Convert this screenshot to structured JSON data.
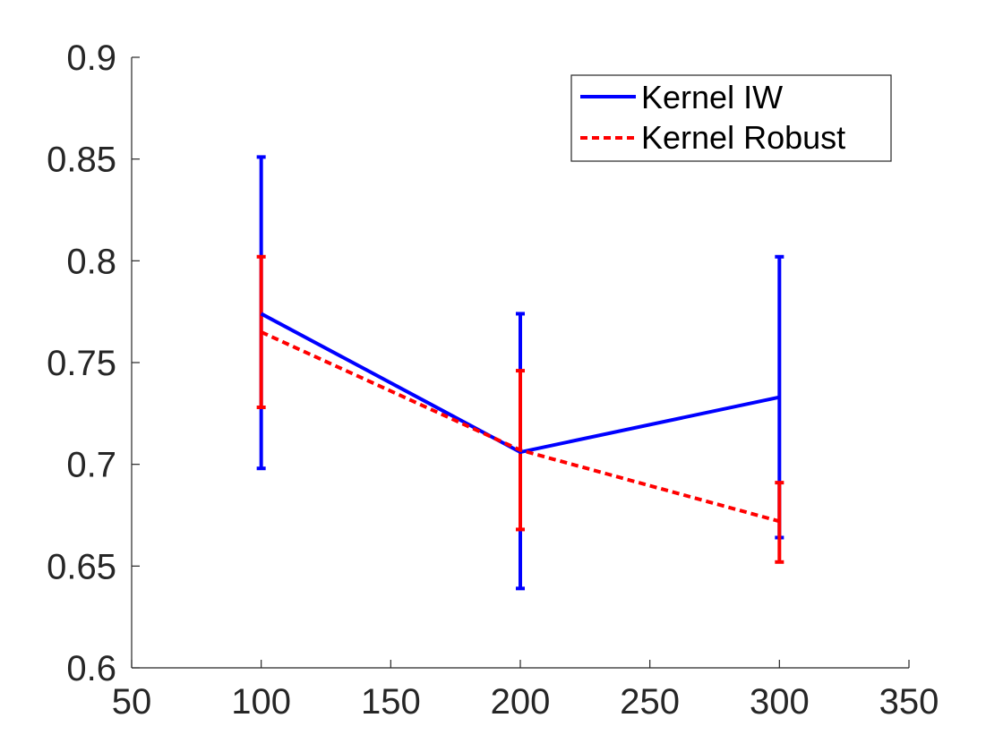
{
  "chart_data": {
    "type": "line",
    "title": "",
    "xlabel": "",
    "ylabel": "",
    "xlim": [
      50,
      350
    ],
    "ylim": [
      0.6,
      0.9
    ],
    "xticks": [
      50,
      100,
      150,
      200,
      250,
      300,
      350
    ],
    "xtick_labels": [
      "50",
      "100",
      "150",
      "200",
      "250",
      "300",
      "350"
    ],
    "yticks": [
      0.6,
      0.65,
      0.7,
      0.75,
      0.8,
      0.85,
      0.9
    ],
    "ytick_labels": [
      "0.6",
      "0.65",
      "0.7",
      "0.75",
      "0.8",
      "0.85",
      "0.9"
    ],
    "grid": false,
    "legend_position": "top-right",
    "x": [
      100,
      200,
      300
    ],
    "series": [
      {
        "name": "Kernel IW",
        "color": "#0000ff",
        "line_style": "solid",
        "values": [
          0.774,
          0.706,
          0.733
        ],
        "error_upper": [
          0.851,
          0.774,
          0.802
        ],
        "error_lower": [
          0.698,
          0.639,
          0.664
        ]
      },
      {
        "name": "Kernel Robust",
        "color": "#ff0000",
        "line_style": "dashed",
        "values": [
          0.765,
          0.707,
          0.672
        ],
        "error_upper": [
          0.802,
          0.746,
          0.691
        ],
        "error_lower": [
          0.728,
          0.668,
          0.652
        ]
      }
    ]
  }
}
